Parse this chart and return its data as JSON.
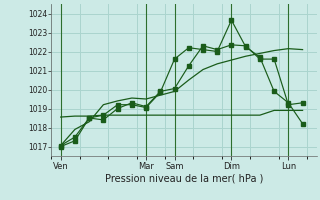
{
  "xlabel": "Pression niveau de la mer( hPa )",
  "background_color": "#cceae6",
  "grid_color": "#aad4ce",
  "line_color": "#1a5c1a",
  "vline_color": "#2d6e2d",
  "ylim": [
    1016.5,
    1024.5
  ],
  "yticks": [
    1017,
    1018,
    1019,
    1020,
    1021,
    1022,
    1023,
    1024
  ],
  "day_labels": [
    "Ven",
    "Mar",
    "Sam",
    "Dim",
    "Lun"
  ],
  "day_positions": [
    0,
    36,
    48,
    72,
    96
  ],
  "xlim": [
    -4,
    108
  ],
  "vline_positions": [
    0,
    36,
    48,
    72,
    96
  ],
  "series1_x": [
    0,
    6,
    12,
    18,
    24,
    30,
    36,
    42,
    48,
    54,
    60,
    66,
    72,
    78,
    84,
    90,
    96,
    102
  ],
  "series1_y": [
    1017.0,
    1017.3,
    1018.5,
    1018.65,
    1019.2,
    1019.2,
    1019.05,
    1019.85,
    1021.6,
    1022.2,
    1022.1,
    1022.0,
    1023.65,
    1022.25,
    1021.7,
    1019.9,
    1019.3,
    1018.2
  ],
  "series2_x": [
    0,
    6,
    12,
    18,
    24,
    30,
    36,
    42,
    48,
    54,
    60,
    66,
    72,
    78,
    84,
    90,
    96,
    102
  ],
  "series2_y": [
    1017.05,
    1017.5,
    1018.5,
    1018.4,
    1019.0,
    1019.3,
    1019.1,
    1019.9,
    1020.05,
    1021.25,
    1022.3,
    1022.1,
    1022.35,
    1022.3,
    1021.6,
    1021.6,
    1019.2,
    1019.3
  ],
  "series3_x": [
    0,
    6,
    12,
    18,
    24,
    30,
    36,
    42,
    48,
    54,
    60,
    66,
    72,
    78,
    84,
    90,
    96,
    102
  ],
  "series3_y": [
    1018.55,
    1018.6,
    1018.6,
    1018.65,
    1018.65,
    1018.65,
    1018.65,
    1018.65,
    1018.65,
    1018.65,
    1018.65,
    1018.65,
    1018.65,
    1018.65,
    1018.65,
    1018.9,
    1018.9,
    1018.9
  ],
  "series4_x": [
    0,
    6,
    12,
    18,
    24,
    30,
    36,
    42,
    48,
    54,
    60,
    66,
    72,
    78,
    84,
    90,
    96,
    102
  ],
  "series4_y": [
    1017.05,
    1017.9,
    1018.3,
    1019.2,
    1019.4,
    1019.55,
    1019.5,
    1019.7,
    1019.9,
    1020.5,
    1021.05,
    1021.35,
    1021.55,
    1021.75,
    1021.9,
    1022.05,
    1022.15,
    1022.1
  ]
}
